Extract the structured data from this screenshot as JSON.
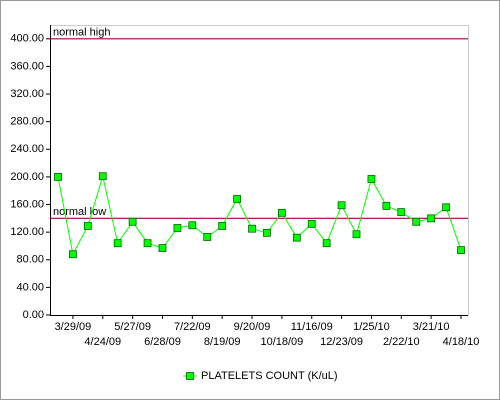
{
  "chart_data": {
    "type": "line",
    "categories": [
      null,
      "3/29/09",
      null,
      "4/24/09",
      null,
      "5/27/09",
      null,
      "6/28/09",
      null,
      "7/22/09",
      null,
      "8/19/09",
      null,
      "9/20/09",
      null,
      "10/18/09",
      null,
      "11/16/09",
      null,
      "12/23/09",
      null,
      "1/25/10",
      null,
      "2/22/10",
      null,
      "3/21/10",
      null,
      "4/18/10"
    ],
    "series": [
      {
        "name": "PLATELETS COUNT (K/uL)",
        "color": "#00ff00",
        "values": [
          200,
          88,
          129,
          201,
          104,
          135,
          104,
          97,
          126,
          130,
          113,
          129,
          168,
          125,
          119,
          148,
          112,
          132,
          104,
          159,
          117,
          197,
          158,
          149,
          135,
          140,
          156,
          94
        ]
      }
    ],
    "reference_lines": [
      {
        "label": "normal high",
        "value": 400,
        "color": "#99004d"
      },
      {
        "label": "normal low",
        "value": 140,
        "color": "#99004d"
      }
    ],
    "ylim": [
      0,
      420
    ],
    "yticks": [
      {
        "value": 0,
        "label": "0.00"
      },
      {
        "value": 40,
        "label": "40.00"
      },
      {
        "value": 80,
        "label": "80.00"
      },
      {
        "value": 120,
        "label": "120.00"
      },
      {
        "value": 160,
        "label": "160.00"
      },
      {
        "value": 200,
        "label": "200.00"
      },
      {
        "value": 240,
        "label": "240.00"
      },
      {
        "value": 280,
        "label": "280.00"
      },
      {
        "value": 320,
        "label": "320.00"
      },
      {
        "value": 360,
        "label": "360.00"
      },
      {
        "value": 400,
        "label": "400.00"
      }
    ],
    "grid": false,
    "legend": "bottom"
  }
}
